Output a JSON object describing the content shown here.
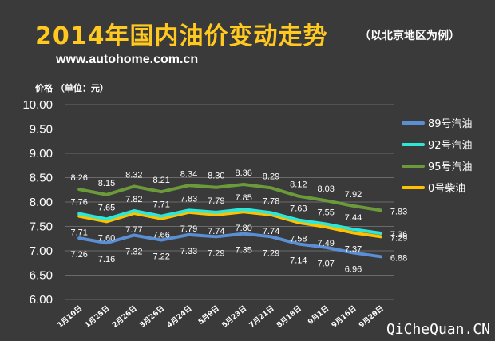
{
  "header": {
    "title": "2014年国内油价变动走势",
    "subtitle": "（以北京地区为例）",
    "url": "www.autohome.com.cn"
  },
  "watermark": "QiCheQuan.CN",
  "chart_data": {
    "type": "line",
    "ylabel": "价格 （单位：元）",
    "ylim": [
      6.0,
      10.0
    ],
    "yticks": [
      "6.00",
      "6.50",
      "7.00",
      "7.50",
      "8.00",
      "8.50",
      "9.00",
      "9.50",
      "10.00"
    ],
    "grid": true,
    "legend_position": "right",
    "categories": [
      "1月10日",
      "1月25日",
      "2月26日",
      "3月26日",
      "4月24日",
      "5月9日",
      "5月23日",
      "7月21日",
      "8月18日",
      "9月1日",
      "9月16日",
      "9月29日"
    ],
    "series": [
      {
        "name": "89号汽油",
        "color": "#5b8fd4",
        "values": [
          7.26,
          7.16,
          7.32,
          7.22,
          7.33,
          7.29,
          7.35,
          7.29,
          7.14,
          7.07,
          6.96,
          6.88
        ]
      },
      {
        "name": "92号汽油",
        "color": "#2ee6d8",
        "values": [
          7.76,
          7.65,
          7.82,
          7.71,
          7.83,
          7.79,
          7.85,
          7.78,
          7.63,
          7.55,
          7.44,
          7.36
        ]
      },
      {
        "name": "95号汽油",
        "color": "#6a9a3a",
        "values": [
          8.26,
          8.15,
          8.32,
          8.21,
          8.34,
          8.3,
          8.36,
          8.29,
          8.12,
          8.03,
          7.92,
          7.83
        ]
      },
      {
        "name": "0号柴油",
        "color": "#ffc000",
        "values": [
          7.71,
          7.6,
          7.77,
          7.66,
          7.79,
          7.74,
          7.8,
          7.74,
          7.58,
          7.49,
          7.37,
          7.29
        ]
      }
    ],
    "data_labels": [
      {
        "series": 2,
        "text": [
          "8.26",
          "8.15",
          "8.32",
          "8.21",
          "8.34",
          "8.30",
          "8.36",
          "8.29",
          "8.12",
          "8.03",
          "7.92",
          "7.83"
        ]
      },
      {
        "series": 1,
        "text": [
          "7.76",
          "7.65",
          "7.82",
          "7.71",
          "7.83",
          "7.79",
          "7.85",
          "7.78",
          "7.63",
          "7.55",
          "7.44",
          "7.36"
        ]
      },
      {
        "series": 3,
        "text": [
          "7.71",
          "7.60",
          "7.77",
          "7.66",
          "7.79",
          "7.74",
          "7.80",
          "7.74",
          "7.58",
          "7.49",
          "7.37",
          "7.29"
        ]
      },
      {
        "series": 0,
        "text": [
          "7.26",
          "7.16",
          "7.32",
          "7.22",
          "7.33",
          "7.29",
          "7.35",
          "7.29",
          "7.14",
          "7.07",
          "6.96",
          "6.88"
        ]
      }
    ]
  }
}
